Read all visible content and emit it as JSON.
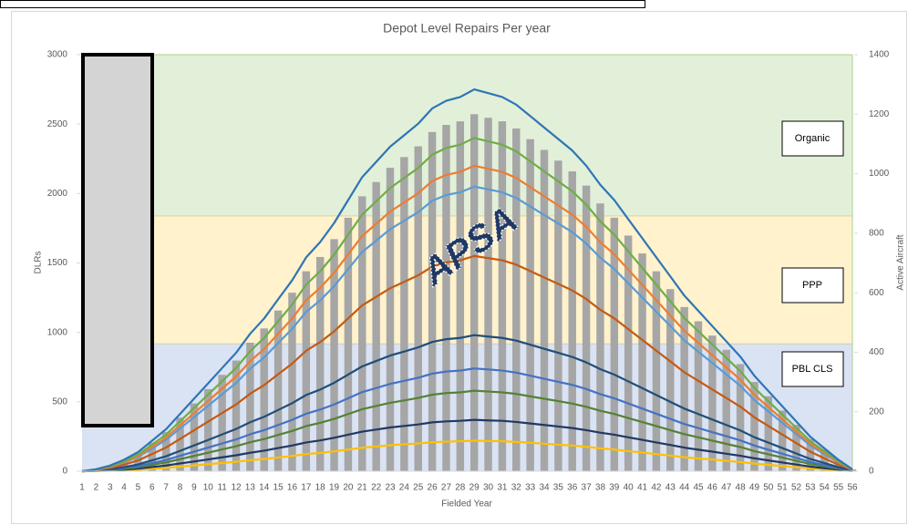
{
  "chart_data": {
    "type": "bar_line",
    "title": "Depot Level Repairs Per year",
    "x_label": "Fielded Year",
    "y_label": "DLRs",
    "y2_label": "Active Aircraft",
    "annotation": "APSA",
    "categories": [
      "1",
      "2",
      "3",
      "4",
      "5",
      "6",
      "7",
      "8",
      "9",
      "10",
      "11",
      "12",
      "13",
      "14",
      "15",
      "16",
      "17",
      "18",
      "19",
      "20",
      "21",
      "22",
      "23",
      "24",
      "25",
      "26",
      "27",
      "28",
      "29",
      "30",
      "31",
      "32",
      "33",
      "34",
      "35",
      "36",
      "37",
      "38",
      "39",
      "40",
      "41",
      "42",
      "43",
      "44",
      "45",
      "46",
      "47",
      "48",
      "49",
      "50",
      "51",
      "52",
      "53",
      "54",
      "55",
      "56"
    ],
    "ylim": [
      0,
      3000
    ],
    "yticks": [
      0,
      500,
      1000,
      1500,
      2000,
      2500,
      3000
    ],
    "y2lim": [
      0,
      1400
    ],
    "y2ticks": [
      0,
      200,
      400,
      600,
      800,
      1000,
      1200,
      1400
    ],
    "grid": false,
    "bands": [
      {
        "label": "PBL CLS",
        "from": 0,
        "to": 920,
        "color": "#dae3f3"
      },
      {
        "label": "PPP",
        "from": 920,
        "to": 1840,
        "color": "#fff2cc"
      },
      {
        "label": "Organic",
        "from": 1840,
        "to": 3000,
        "color": "#e2f0d9"
      }
    ],
    "bars": {
      "axis": "y2",
      "color": "#a6a6a6",
      "values": [
        0,
        6,
        18,
        36,
        60,
        96,
        132,
        180,
        228,
        276,
        324,
        372,
        432,
        480,
        540,
        600,
        672,
        720,
        780,
        852,
        924,
        972,
        1020,
        1056,
        1092,
        1140,
        1164,
        1176,
        1200,
        1188,
        1176,
        1152,
        1116,
        1080,
        1044,
        1008,
        960,
        900,
        852,
        792,
        732,
        672,
        612,
        552,
        504,
        456,
        408,
        360,
        300,
        252,
        204,
        156,
        108,
        72,
        36,
        6
      ]
    },
    "series": [
      {
        "color": "#2e75b6",
        "values": [
          0,
          14,
          41,
          83,
          138,
          220,
          303,
          413,
          523,
          633,
          743,
          853,
          990,
          1100,
          1238,
          1375,
          1540,
          1650,
          1788,
          1953,
          2118,
          2228,
          2338,
          2420,
          2503,
          2613,
          2668,
          2695,
          2750,
          2723,
          2695,
          2640,
          2558,
          2475,
          2393,
          2310,
          2200,
          2063,
          1953,
          1815,
          1678,
          1540,
          1403,
          1265,
          1155,
          1045,
          935,
          825,
          688,
          578,
          468,
          358,
          248,
          165,
          83,
          14
        ]
      },
      {
        "color": "#70ad47",
        "values": [
          0,
          12,
          36,
          72,
          120,
          192,
          264,
          360,
          456,
          552,
          648,
          744,
          864,
          960,
          1080,
          1200,
          1344,
          1440,
          1560,
          1704,
          1848,
          1944,
          2040,
          2112,
          2184,
          2280,
          2328,
          2352,
          2400,
          2376,
          2352,
          2304,
          2232,
          2160,
          2088,
          2016,
          1920,
          1800,
          1704,
          1584,
          1464,
          1344,
          1224,
          1104,
          1008,
          912,
          816,
          720,
          600,
          504,
          408,
          312,
          216,
          144,
          72,
          12
        ]
      },
      {
        "color": "#ed7d31",
        "values": [
          0,
          11,
          33,
          66,
          110,
          176,
          242,
          330,
          418,
          506,
          594,
          682,
          792,
          880,
          990,
          1100,
          1232,
          1320,
          1430,
          1562,
          1694,
          1782,
          1870,
          1936,
          2002,
          2090,
          2134,
          2156,
          2200,
          2178,
          2156,
          2112,
          2046,
          1980,
          1914,
          1848,
          1760,
          1650,
          1562,
          1452,
          1342,
          1232,
          1122,
          1012,
          924,
          836,
          748,
          660,
          550,
          462,
          374,
          286,
          198,
          132,
          66,
          11
        ]
      },
      {
        "color": "#5b9bd5",
        "values": [
          0,
          10,
          31,
          62,
          103,
          164,
          226,
          308,
          390,
          472,
          554,
          636,
          738,
          820,
          923,
          1025,
          1148,
          1230,
          1333,
          1456,
          1579,
          1661,
          1743,
          1804,
          1866,
          1948,
          1989,
          2009,
          2050,
          2030,
          2009,
          1968,
          1907,
          1845,
          1784,
          1722,
          1640,
          1538,
          1456,
          1353,
          1251,
          1148,
          1046,
          943,
          861,
          779,
          697,
          615,
          513,
          431,
          349,
          267,
          185,
          123,
          62,
          10
        ]
      },
      {
        "color": "#c55a11",
        "values": [
          0,
          8,
          23,
          47,
          78,
          124,
          171,
          233,
          295,
          357,
          419,
          481,
          558,
          620,
          698,
          775,
          868,
          930,
          1008,
          1101,
          1194,
          1256,
          1318,
          1364,
          1411,
          1473,
          1504,
          1519,
          1550,
          1535,
          1519,
          1488,
          1442,
          1395,
          1349,
          1302,
          1240,
          1163,
          1101,
          1023,
          946,
          868,
          791,
          713,
          651,
          589,
          527,
          465,
          388,
          326,
          264,
          202,
          140,
          93,
          47,
          8
        ]
      },
      {
        "color": "#1f4e79",
        "values": [
          0,
          5,
          15,
          29,
          49,
          78,
          108,
          147,
          186,
          225,
          265,
          304,
          353,
          392,
          441,
          490,
          549,
          588,
          637,
          696,
          755,
          794,
          833,
          862,
          892,
          931,
          951,
          960,
          980,
          970,
          960,
          941,
          911,
          882,
          853,
          823,
          784,
          735,
          696,
          647,
          598,
          549,
          500,
          451,
          412,
          372,
          333,
          294,
          245,
          206,
          167,
          127,
          88,
          59,
          29,
          5
        ]
      },
      {
        "color": "#4472c4",
        "values": [
          0,
          4,
          11,
          22,
          37,
          59,
          81,
          111,
          141,
          170,
          200,
          229,
          266,
          296,
          333,
          370,
          414,
          444,
          481,
          525,
          570,
          599,
          629,
          651,
          673,
          703,
          718,
          725,
          740,
          733,
          725,
          710,
          688,
          666,
          644,
          622,
          592,
          555,
          525,
          488,
          451,
          414,
          377,
          340,
          311,
          281,
          252,
          222,
          185,
          155,
          126,
          96,
          67,
          44,
          22,
          4
        ]
      },
      {
        "color": "#548235",
        "values": [
          0,
          3,
          9,
          17,
          29,
          46,
          64,
          87,
          110,
          133,
          157,
          180,
          209,
          232,
          261,
          290,
          325,
          348,
          377,
          412,
          447,
          470,
          493,
          510,
          528,
          551,
          563,
          568,
          580,
          574,
          568,
          557,
          539,
          522,
          505,
          487,
          464,
          435,
          412,
          383,
          354,
          325,
          296,
          267,
          244,
          220,
          197,
          174,
          145,
          122,
          99,
          75,
          52,
          35,
          17,
          3
        ]
      },
      {
        "color": "#203864",
        "values": [
          0,
          2,
          6,
          11,
          19,
          30,
          41,
          56,
          70,
          85,
          100,
          115,
          133,
          148,
          167,
          185,
          207,
          222,
          241,
          263,
          285,
          300,
          315,
          326,
          337,
          352,
          359,
          363,
          370,
          366,
          363,
          355,
          344,
          333,
          322,
          311,
          296,
          278,
          263,
          244,
          226,
          207,
          189,
          170,
          155,
          141,
          126,
          111,
          93,
          78,
          63,
          48,
          33,
          22,
          11,
          2
        ]
      },
      {
        "color": "#ffc000",
        "values": [
          0,
          1,
          3,
          7,
          11,
          18,
          24,
          33,
          42,
          51,
          59,
          68,
          79,
          88,
          99,
          110,
          123,
          132,
          143,
          156,
          169,
          178,
          187,
          194,
          200,
          209,
          213,
          216,
          220,
          218,
          216,
          211,
          205,
          198,
          191,
          185,
          176,
          165,
          156,
          145,
          134,
          123,
          112,
          101,
          92,
          84,
          75,
          66,
          55,
          46,
          37,
          29,
          20,
          13,
          7,
          1
        ]
      }
    ]
  }
}
